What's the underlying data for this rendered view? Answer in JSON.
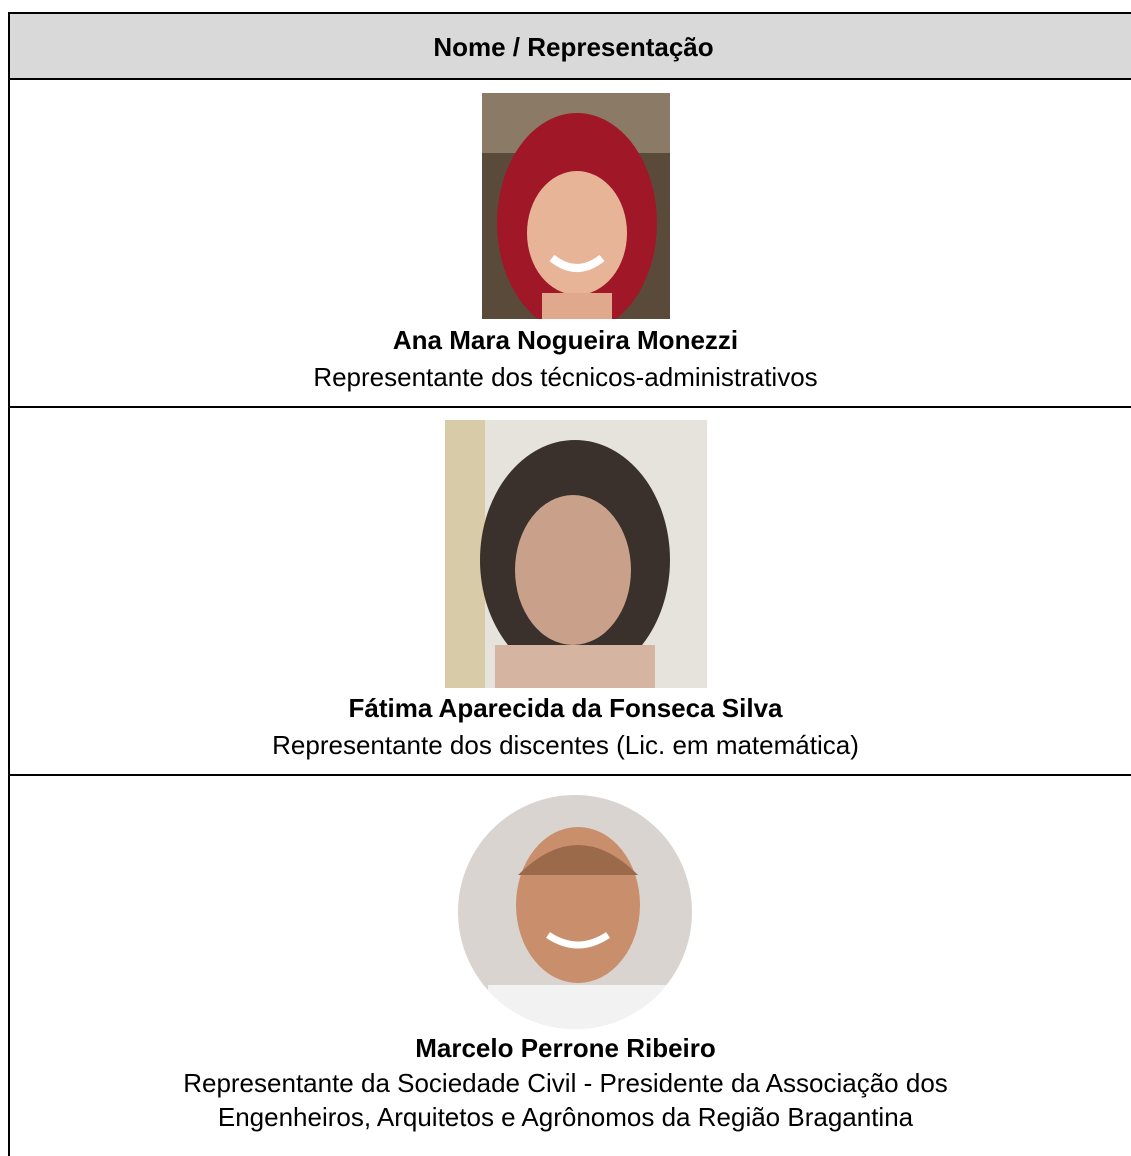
{
  "header": {
    "title": "Nome / Representação"
  },
  "rows": [
    {
      "name": "Ana Mara Nogueira Monezzi",
      "role_lines": [
        "Representante dos técnicos-administrativos"
      ]
    },
    {
      "name": "Fátima Aparecida da Fonseca Silva",
      "role_lines": [
        "Representante dos discentes (Lic. em matemática)"
      ]
    },
    {
      "name": "Marcelo Perrone Ribeiro",
      "role_lines": [
        "Representante da Sociedade Civil - Presidente da Associação dos",
        "Engenheiros, Arquitetos e Agrônomos da Região Bragantina"
      ]
    }
  ]
}
